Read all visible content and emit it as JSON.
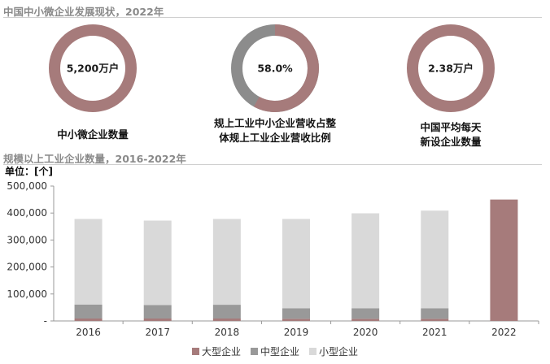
{
  "header": {
    "title": "中国中小微企业发展现状，2022年"
  },
  "kpis": [
    {
      "value_text": "5,200万户",
      "fill_fraction": 1.0,
      "color": "#a67b7b",
      "label": "中小微企业数量"
    },
    {
      "value_text": "58.0%",
      "fill_fraction": 0.58,
      "color": "#a67b7b",
      "rest_color": "#8c8c8c",
      "label_line1": "规上工业中小企业营收占整",
      "label_line2": "体规上工业企业营收比例"
    },
    {
      "value_text": "2.38万户",
      "fill_fraction": 1.0,
      "color": "#a67b7b",
      "label_line1": "中国平均每天",
      "label_line2": "新设企业数量"
    }
  ],
  "section2": {
    "title": "规模以上工业企业数量，2016-2022年",
    "unit": "单位：[个]"
  },
  "chart_data": {
    "type": "bar",
    "stacked": true,
    "categories": [
      "2016",
      "2017",
      "2018",
      "2019",
      "2020",
      "2021",
      "2022"
    ],
    "series": [
      {
        "name": "大型企业",
        "color": "#a67b7b",
        "values": [
          9000,
          9000,
          9000,
          8000,
          8000,
          8000,
          450000
        ]
      },
      {
        "name": "中型企业",
        "color": "#999999",
        "values": [
          52000,
          50000,
          51000,
          39000,
          39000,
          39000,
          0
        ]
      },
      {
        "name": "小型企业",
        "color": "#d9d9d9",
        "values": [
          317000,
          313000,
          318000,
          331000,
          352000,
          362000,
          0
        ]
      }
    ],
    "ylim": [
      0,
      500000
    ],
    "yticks": [
      0,
      100000,
      200000,
      300000,
      400000,
      500000
    ],
    "ytick_labels": [
      "-",
      "100,000",
      "200,000",
      "300,000",
      "400,000",
      "500,000"
    ],
    "grid": false,
    "legend_position": "bottom"
  }
}
